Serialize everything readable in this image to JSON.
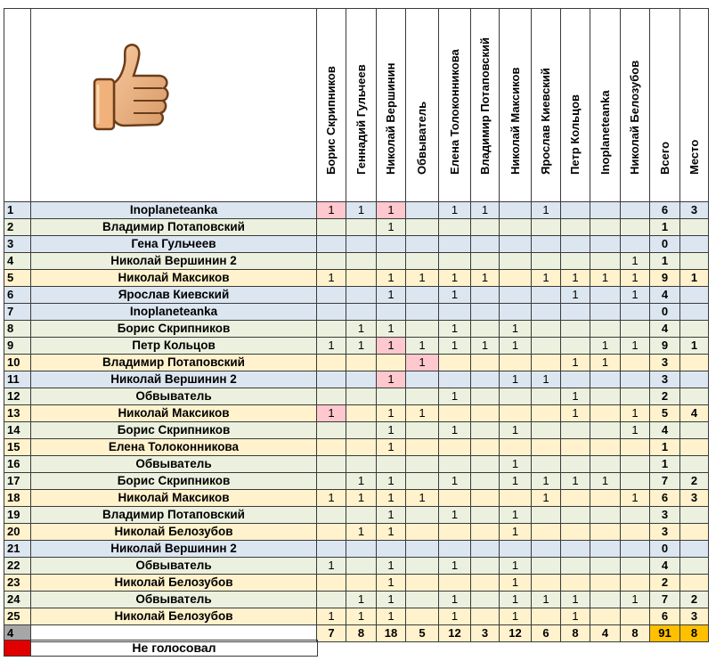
{
  "columns": [
    "Борис Скрипников",
    "Геннадий Гульчеев",
    "Николай Вершинин",
    "Обвыватель",
    "Елена Толоконникова",
    "Владимир Потаповский",
    "Николай Максиков",
    "Ярослав Киевский",
    "Петр Кольцов",
    "Inoplaneteanka",
    "Николай Белозубов",
    "Всего",
    "Место"
  ],
  "legend": {
    "label": "Не голосовал",
    "color": "#e00000"
  },
  "colors": {
    "blue": "#dce6f1",
    "green": "#ebf1de",
    "yellow": "#fff2cc",
    "pink": "#ffc7ce",
    "gold": "#ffc000"
  },
  "rows": [
    {
      "num": "1",
      "name": "Inoplaneteanka",
      "bg": "blue",
      "votes": [
        "1",
        "1",
        "1",
        "",
        "1",
        "1",
        "",
        "1",
        "",
        "",
        ""
      ],
      "pink": [
        0,
        2
      ],
      "total": "6",
      "place": "3"
    },
    {
      "num": "2",
      "name": "Владимир Потаповский",
      "bg": "green",
      "votes": [
        "",
        "",
        "1",
        "",
        "",
        "",
        "",
        "",
        "",
        "",
        ""
      ],
      "pink": [],
      "total": "1",
      "place": ""
    },
    {
      "num": "3",
      "name": "Гена Гульчеев",
      "bg": "blue",
      "votes": [
        "",
        "",
        "",
        "",
        "",
        "",
        "",
        "",
        "",
        "",
        ""
      ],
      "pink": [],
      "total": "0",
      "place": ""
    },
    {
      "num": "4",
      "name": "Николай Вершинин 2",
      "bg": "green",
      "votes": [
        "",
        "",
        "",
        "",
        "",
        "",
        "",
        "",
        "",
        "",
        "1"
      ],
      "pink": [],
      "total": "1",
      "place": ""
    },
    {
      "num": "5",
      "name": "Николай Максиков",
      "bg": "yellow",
      "votes": [
        "1",
        "",
        "1",
        "1",
        "1",
        "1",
        "",
        "1",
        "1",
        "1",
        "1"
      ],
      "pink": [],
      "total": "9",
      "place": "1"
    },
    {
      "num": "6",
      "name": "Ярослав Киевский",
      "bg": "blue",
      "votes": [
        "",
        "",
        "1",
        "",
        "1",
        "",
        "",
        "",
        "1",
        "",
        "1"
      ],
      "pink": [],
      "total": "4",
      "place": ""
    },
    {
      "num": "7",
      "name": "Inoplaneteanka",
      "bg": "blue",
      "votes": [
        "",
        "",
        "",
        "",
        "",
        "",
        "",
        "",
        "",
        "",
        ""
      ],
      "pink": [],
      "total": "0",
      "place": ""
    },
    {
      "num": "8",
      "name": "Борис Скрипников",
      "bg": "green",
      "votes": [
        "",
        "1",
        "1",
        "",
        "1",
        "",
        "1",
        "",
        "",
        "",
        ""
      ],
      "pink": [],
      "total": "4",
      "place": ""
    },
    {
      "num": "9",
      "name": "Петр Кольцов",
      "bg": "green",
      "votes": [
        "1",
        "1",
        "1",
        "1",
        "1",
        "1",
        "1",
        "",
        "",
        "1",
        "1"
      ],
      "pink": [
        2
      ],
      "total": "9",
      "place": "1"
    },
    {
      "num": "10",
      "name": "Владимир Потаповский",
      "bg": "yellow",
      "votes": [
        "",
        "",
        "",
        "1",
        "",
        "",
        "",
        "",
        "1",
        "1",
        ""
      ],
      "pink": [
        3
      ],
      "total": "3",
      "place": ""
    },
    {
      "num": "11",
      "name": "Николай Вершинин 2",
      "bg": "blue",
      "votes": [
        "",
        "",
        "1",
        "",
        "",
        "",
        "1",
        "1",
        "",
        "",
        ""
      ],
      "pink": [
        2
      ],
      "total": "3",
      "place": ""
    },
    {
      "num": "12",
      "name": "Обвыватель",
      "bg": "green",
      "votes": [
        "",
        "",
        "",
        "",
        "1",
        "",
        "",
        "",
        "1",
        "",
        ""
      ],
      "pink": [],
      "total": "2",
      "place": ""
    },
    {
      "num": "13",
      "name": "Николай Максиков",
      "bg": "yellow",
      "votes": [
        "1",
        "",
        "1",
        "1",
        "",
        "",
        "",
        "",
        "1",
        "",
        "1"
      ],
      "pink": [
        0
      ],
      "total": "5",
      "place": "4"
    },
    {
      "num": "14",
      "name": "Борис Скрипников",
      "bg": "green",
      "votes": [
        "",
        "",
        "1",
        "",
        "1",
        "",
        "1",
        "",
        "",
        "",
        "1"
      ],
      "pink": [],
      "total": "4",
      "place": ""
    },
    {
      "num": "15",
      "name": "Елена Толоконникова",
      "bg": "yellow",
      "votes": [
        "",
        "",
        "1",
        "",
        "",
        "",
        "",
        "",
        "",
        "",
        ""
      ],
      "pink": [],
      "total": "1",
      "place": ""
    },
    {
      "num": "16",
      "name": "Обвыватель",
      "bg": "green",
      "votes": [
        "",
        "",
        "",
        "",
        "",
        "",
        "1",
        "",
        "",
        "",
        ""
      ],
      "pink": [],
      "total": "1",
      "place": ""
    },
    {
      "num": "17",
      "name": "Борис Скрипников",
      "bg": "green",
      "votes": [
        "",
        "1",
        "1",
        "",
        "1",
        "",
        "1",
        "1",
        "1",
        "1",
        ""
      ],
      "pink": [],
      "total": "7",
      "place": "2"
    },
    {
      "num": "18",
      "name": "Николай Максиков",
      "bg": "yellow",
      "votes": [
        "1",
        "1",
        "1",
        "1",
        "",
        "",
        "",
        "1",
        "",
        "",
        "1"
      ],
      "pink": [],
      "total": "6",
      "place": "3"
    },
    {
      "num": "19",
      "name": "Владимир Потаповский",
      "bg": "green",
      "votes": [
        "",
        "",
        "1",
        "",
        "1",
        "",
        "1",
        "",
        "",
        "",
        ""
      ],
      "pink": [],
      "total": "3",
      "place": ""
    },
    {
      "num": "20",
      "name": "Николай Белозубов",
      "bg": "yellow",
      "votes": [
        "",
        "1",
        "1",
        "",
        "",
        "",
        "1",
        "",
        "",
        "",
        ""
      ],
      "pink": [],
      "total": "3",
      "place": ""
    },
    {
      "num": "21",
      "name": "Николай Вершинин 2",
      "bg": "blue",
      "votes": [
        "",
        "",
        "",
        "",
        "",
        "",
        "",
        "",
        "",
        "",
        ""
      ],
      "pink": [],
      "total": "0",
      "place": ""
    },
    {
      "num": "22",
      "name": "Обвыватель",
      "bg": "green",
      "votes": [
        "1",
        "",
        "1",
        "",
        "1",
        "",
        "1",
        "",
        "",
        "",
        ""
      ],
      "pink": [],
      "total": "4",
      "place": ""
    },
    {
      "num": "23",
      "name": "Николай Белозубов",
      "bg": "yellow",
      "votes": [
        "",
        "",
        "1",
        "",
        "",
        "",
        "1",
        "",
        "",
        "",
        ""
      ],
      "pink": [],
      "total": "2",
      "place": ""
    },
    {
      "num": "24",
      "name": "Обвыватель",
      "bg": "green",
      "votes": [
        "",
        "1",
        "1",
        "",
        "1",
        "",
        "1",
        "1",
        "1",
        "",
        "1"
      ],
      "pink": [],
      "total": "7",
      "place": "2"
    },
    {
      "num": "25",
      "name": "Николай Белозубов",
      "bg": "yellow",
      "votes": [
        "1",
        "1",
        "1",
        "",
        "1",
        "",
        "1",
        "",
        "1",
        "",
        ""
      ],
      "pink": [],
      "total": "6",
      "place": "3"
    }
  ],
  "footer": {
    "num": "4",
    "totals": [
      "7",
      "8",
      "18",
      "5",
      "12",
      "3",
      "12",
      "6",
      "8",
      "4",
      "8"
    ],
    "grand_total": "91",
    "grand_place": "8"
  }
}
